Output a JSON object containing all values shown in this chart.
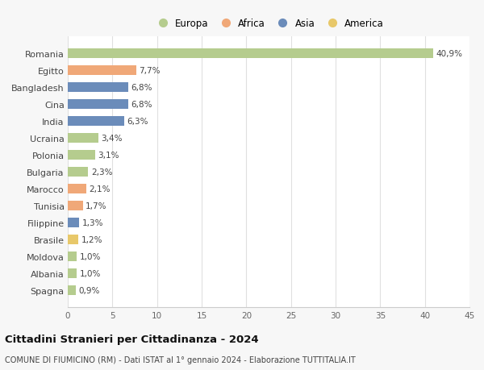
{
  "countries": [
    "Romania",
    "Egitto",
    "Bangladesh",
    "Cina",
    "India",
    "Ucraina",
    "Polonia",
    "Bulgaria",
    "Marocco",
    "Tunisia",
    "Filippine",
    "Brasile",
    "Moldova",
    "Albania",
    "Spagna"
  ],
  "values": [
    40.9,
    7.7,
    6.8,
    6.8,
    6.3,
    3.4,
    3.1,
    2.3,
    2.1,
    1.7,
    1.3,
    1.2,
    1.0,
    1.0,
    0.9
  ],
  "labels": [
    "40,9%",
    "7,7%",
    "6,8%",
    "6,8%",
    "6,3%",
    "3,4%",
    "3,1%",
    "2,3%",
    "2,1%",
    "1,7%",
    "1,3%",
    "1,2%",
    "1,0%",
    "1,0%",
    "0,9%"
  ],
  "colors": [
    "#b5cc8e",
    "#f0a878",
    "#6b8cba",
    "#6b8cba",
    "#6b8cba",
    "#b5cc8e",
    "#b5cc8e",
    "#b5cc8e",
    "#f0a878",
    "#f0a878",
    "#6b8cba",
    "#e8c86a",
    "#b5cc8e",
    "#b5cc8e",
    "#b5cc8e"
  ],
  "legend_labels": [
    "Europa",
    "Africa",
    "Asia",
    "America"
  ],
  "legend_colors": [
    "#b5cc8e",
    "#f0a878",
    "#6b8cba",
    "#e8c86a"
  ],
  "xlim": [
    0,
    45
  ],
  "xticks": [
    0,
    5,
    10,
    15,
    20,
    25,
    30,
    35,
    40,
    45
  ],
  "title": "Cittadini Stranieri per Cittadinanza - 2024",
  "subtitle": "COMUNE DI FIUMICINO (RM) - Dati ISTAT al 1° gennaio 2024 - Elaborazione TUTTITALIA.IT",
  "bg_color": "#f7f7f7",
  "plot_bg_color": "#ffffff",
  "grid_color": "#e0e0e0",
  "bar_height": 0.55
}
